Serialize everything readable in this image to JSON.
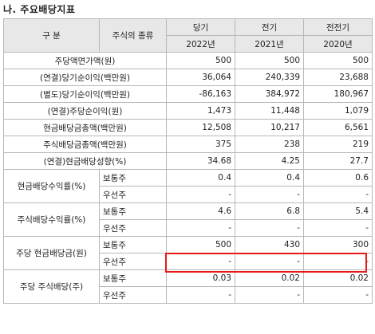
{
  "title": "나. 주요배당지표",
  "header": {
    "gubun": "구    분",
    "stock_type": "주식의 종류",
    "periods": [
      "당기",
      "전기",
      "전전기"
    ],
    "years": [
      "2022년",
      "2021년",
      "2020년"
    ]
  },
  "rows": [
    {
      "label": "주당액면가액(원)",
      "values": [
        "500",
        "500",
        "500"
      ]
    },
    {
      "label": "(연결)당기순이익(백만원)",
      "values": [
        "36,064",
        "240,339",
        "23,688"
      ]
    },
    {
      "label": "(별도)당기순이익(백만원)",
      "values": [
        "-86,163",
        "384,972",
        "180,967"
      ]
    },
    {
      "label": "(연결)주당순이익(원)",
      "values": [
        "1,473",
        "11,448",
        "1,079"
      ]
    },
    {
      "label": "현금배당금총액(백만원)",
      "values": [
        "12,508",
        "10,217",
        "6,561"
      ]
    },
    {
      "label": "주식배당금총액(백만원)",
      "values": [
        "375",
        "238",
        "219"
      ]
    },
    {
      "label": "(연결)현금배당성향(%)",
      "values": [
        "34.68",
        "4.25",
        "27.7"
      ]
    }
  ],
  "groups": [
    {
      "label": "현금배당수익률(%)",
      "sub": [
        {
          "type": "보통주",
          "values": [
            "0.4",
            "0.4",
            "0.6"
          ]
        },
        {
          "type": "우선주",
          "values": [
            "-",
            "-",
            "-"
          ]
        }
      ]
    },
    {
      "label": "주식배당수익률(%)",
      "sub": [
        {
          "type": "보통주",
          "values": [
            "4.6",
            "6.8",
            "5.4"
          ]
        },
        {
          "type": "우선주",
          "values": [
            "-",
            "-",
            "-"
          ]
        }
      ]
    },
    {
      "label": "주당 현금배당금(원)",
      "sub": [
        {
          "type": "보통주",
          "values": [
            "500",
            "430",
            "300"
          ]
        },
        {
          "type": "우선주",
          "values": [
            "-",
            "-",
            "-"
          ]
        }
      ]
    },
    {
      "label": "주당 주식배당(주)",
      "sub": [
        {
          "type": "보통주",
          "values": [
            "0.03",
            "0.02",
            "0.02"
          ]
        },
        {
          "type": "우선주",
          "values": [
            "-",
            "-",
            "-"
          ]
        }
      ]
    }
  ],
  "highlight_color": "#e8191a"
}
